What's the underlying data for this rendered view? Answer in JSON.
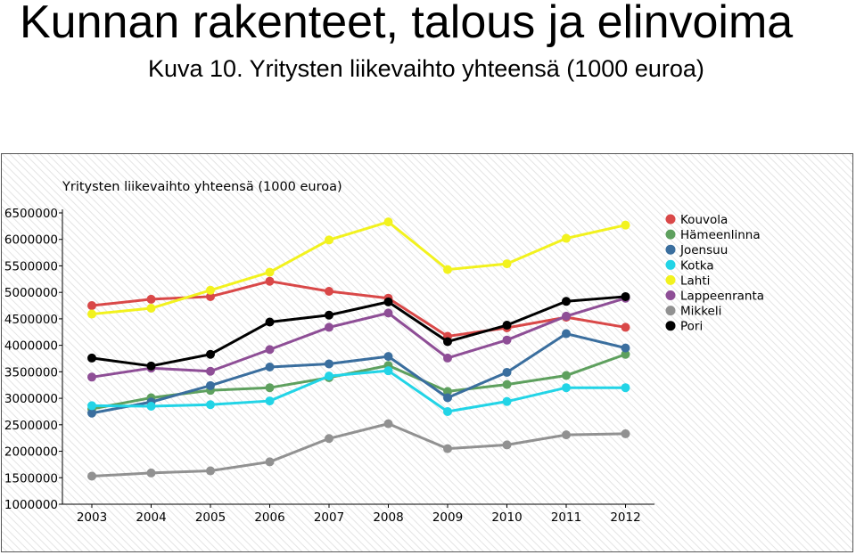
{
  "slide": {
    "title": "Kunnan rakenteet, talous ja elinvoima",
    "subtitle": "Kuva 10. Yritysten liikevaihto yhteensä (1000 euroa)"
  },
  "chart_data": {
    "type": "line",
    "title": "Yritysten liikevaihto yhteensä (1000 euroa)",
    "xlabel": "",
    "ylabel": "",
    "categories": [
      "2003",
      "2004",
      "2005",
      "2006",
      "2007",
      "2008",
      "2009",
      "2010",
      "2011",
      "2012"
    ],
    "ylim": [
      1000000,
      6500000
    ],
    "yticks": [
      1000000,
      1500000,
      2000000,
      2500000,
      3000000,
      3500000,
      4000000,
      4500000,
      5000000,
      5500000,
      6000000,
      6500000
    ],
    "ytick_labels": [
      "1000000",
      "1500000",
      "2000000",
      "2500000",
      "3000000",
      "3500000",
      "4000000",
      "4500000",
      "5000000",
      "5500000",
      "6000000",
      "6500000"
    ],
    "legend_position": "right",
    "grid": false,
    "series": [
      {
        "name": "Kouvola",
        "color": "#d94848",
        "values": [
          4750000,
          4870000,
          4920000,
          5210000,
          5020000,
          4890000,
          4170000,
          4330000,
          4530000,
          4340000
        ]
      },
      {
        "name": "Hämeenlinna",
        "color": "#5ea05e",
        "values": [
          2800000,
          3010000,
          3150000,
          3200000,
          3390000,
          3620000,
          3130000,
          3260000,
          3430000,
          3830000
        ]
      },
      {
        "name": "Joensuu",
        "color": "#3a6e9e",
        "values": [
          2720000,
          2930000,
          3240000,
          3590000,
          3650000,
          3790000,
          3010000,
          3490000,
          4220000,
          3950000
        ]
      },
      {
        "name": "Kotka",
        "color": "#22d4e6",
        "values": [
          2860000,
          2850000,
          2880000,
          2950000,
          3420000,
          3520000,
          2750000,
          2940000,
          3200000,
          3200000
        ]
      },
      {
        "name": "Lahti",
        "color": "#f2f21e",
        "values": [
          4590000,
          4700000,
          5040000,
          5380000,
          5990000,
          6330000,
          5430000,
          5540000,
          6020000,
          6270000
        ]
      },
      {
        "name": "Lappeenranta",
        "color": "#8e4e96",
        "values": [
          3400000,
          3570000,
          3510000,
          3920000,
          4340000,
          4610000,
          3760000,
          4100000,
          4550000,
          4890000
        ]
      },
      {
        "name": "Mikkeli",
        "color": "#919191",
        "values": [
          1530000,
          1590000,
          1630000,
          1800000,
          2240000,
          2520000,
          2050000,
          2120000,
          2310000,
          2330000
        ]
      },
      {
        "name": "Pori",
        "color": "#000000",
        "values": [
          3760000,
          3610000,
          3830000,
          4440000,
          4570000,
          4820000,
          4070000,
          4380000,
          4830000,
          4920000
        ]
      }
    ]
  }
}
